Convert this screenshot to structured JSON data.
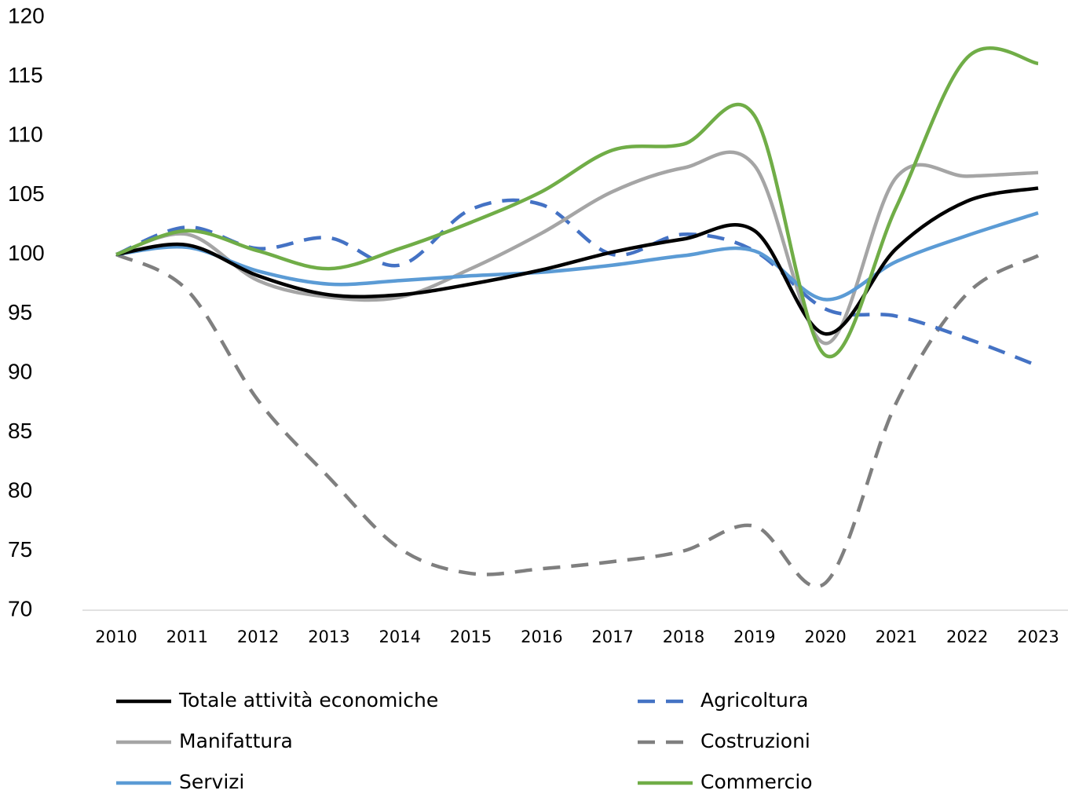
{
  "chart_data": {
    "type": "line",
    "x": [
      2010,
      2011,
      2012,
      2013,
      2014,
      2015,
      2016,
      2017,
      2018,
      2019,
      2020,
      2021,
      2022,
      2023
    ],
    "xticks": [
      2010,
      2011,
      2012,
      2013,
      2014,
      2015,
      2016,
      2017,
      2018,
      2019,
      2020,
      2021,
      2022,
      2023
    ],
    "xlim": [
      2010,
      2023
    ],
    "ylim": [
      70,
      120
    ],
    "yticks": [
      70,
      75,
      80,
      85,
      90,
      95,
      100,
      105,
      110,
      115,
      120
    ],
    "grid": false,
    "legend": "bottom",
    "series": [
      {
        "name": "Totale attività economiche",
        "color": "#000000",
        "dash": false,
        "values": [
          100,
          100.8,
          98.2,
          96.6,
          96.6,
          97.5,
          98.7,
          100.2,
          101.3,
          102,
          93.3,
          100.5,
          104.5,
          105.6
        ]
      },
      {
        "name": "Agricoltura",
        "color": "#4472c4",
        "dash": true,
        "values": [
          100,
          102.3,
          100.5,
          101.4,
          99.1,
          103.8,
          104.2,
          100,
          101.7,
          100.3,
          95.4,
          94.8,
          92.9,
          90.6
        ]
      },
      {
        "name": "Manifattura",
        "color": "#a5a5a5",
        "dash": false,
        "values": [
          100,
          101.7,
          97.8,
          96.4,
          96.4,
          98.8,
          101.8,
          105.3,
          107.3,
          107.5,
          92.5,
          106.5,
          106.6,
          106.9
        ]
      },
      {
        "name": "Costruzioni",
        "color": "#7f7f7f",
        "dash": true,
        "values": [
          100,
          97,
          87.7,
          81.2,
          75.2,
          73.1,
          73.5,
          74.1,
          75,
          77.1,
          72.3,
          87.5,
          96.7,
          99.9
        ]
      },
      {
        "name": "Servizi",
        "color": "#5b9bd5",
        "dash": false,
        "values": [
          100,
          100.6,
          98.6,
          97.5,
          97.8,
          98.2,
          98.5,
          99.1,
          99.9,
          100.3,
          96.2,
          99.4,
          101.6,
          103.5
        ]
      },
      {
        "name": "Commercio",
        "color": "#70ad47",
        "dash": false,
        "values": [
          100,
          102,
          100.3,
          98.8,
          100.5,
          102.7,
          105.3,
          108.8,
          109.3,
          111.7,
          91.5,
          104,
          116.6,
          116.1
        ]
      }
    ]
  }
}
